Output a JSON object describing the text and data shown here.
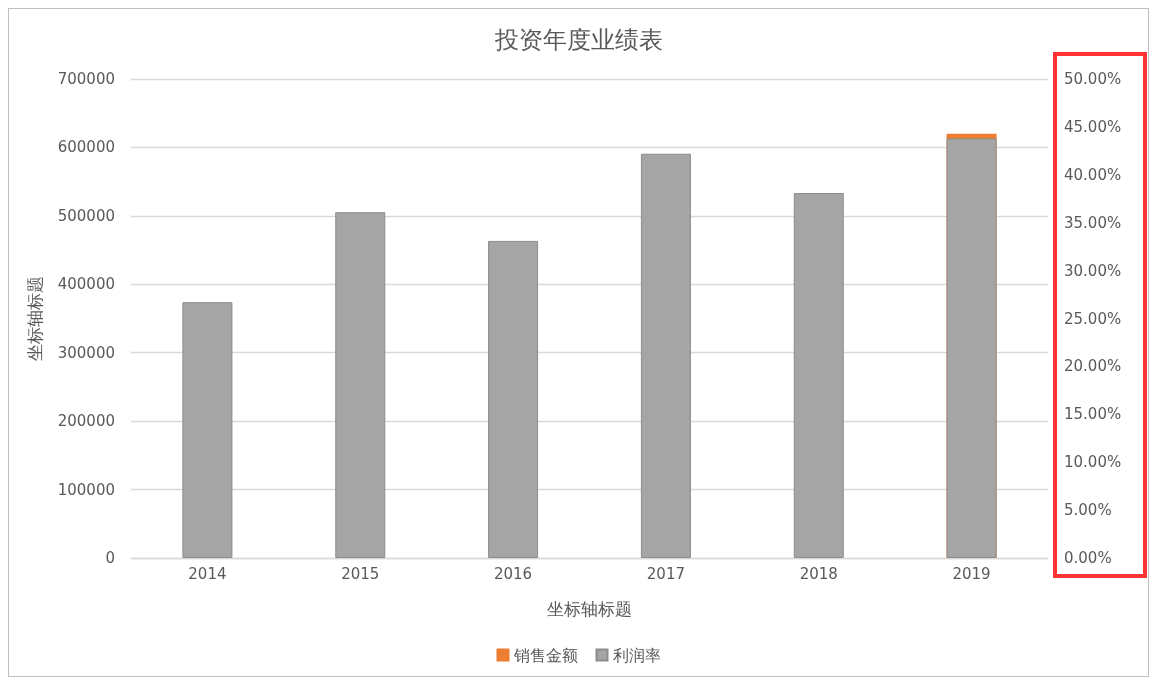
{
  "chart_data": {
    "type": "bar",
    "title": "投资年度业绩表",
    "xlabel": "坐标轴标题",
    "ylabel": "坐标轴标题",
    "categories": [
      "2014",
      "2015",
      "2016",
      "2017",
      "2018",
      "2019"
    ],
    "series": [
      {
        "name": "销售金额",
        "color": "#ed7d31",
        "values": [
          null,
          null,
          null,
          null,
          null,
          620000
        ]
      },
      {
        "name": "利润率",
        "color": "#a5a5a5",
        "axis": "y2",
        "values": [
          26.7,
          36.1,
          33.1,
          42.2,
          38.1,
          43.8
        ]
      }
    ],
    "ylim": [
      0,
      700000
    ],
    "yticks": [
      0,
      100000,
      200000,
      300000,
      400000,
      500000,
      600000,
      700000
    ],
    "y2lim": [
      0,
      50
    ],
    "y2ticks": [
      {
        "value": 0,
        "label": "0.00%"
      },
      {
        "value": 5,
        "label": "5.00%"
      },
      {
        "value": 10,
        "label": "10.00%"
      },
      {
        "value": 15,
        "label": "15.00%"
      },
      {
        "value": 20,
        "label": "20.00%"
      },
      {
        "value": 25,
        "label": "25.00%"
      },
      {
        "value": 30,
        "label": "30.00%"
      },
      {
        "value": 35,
        "label": "35.00%"
      },
      {
        "value": 40,
        "label": "40.00%"
      },
      {
        "value": 45,
        "label": "45.00%"
      },
      {
        "value": 50,
        "label": "50.00%"
      }
    ],
    "grid": "y",
    "legend": "bottom"
  }
}
